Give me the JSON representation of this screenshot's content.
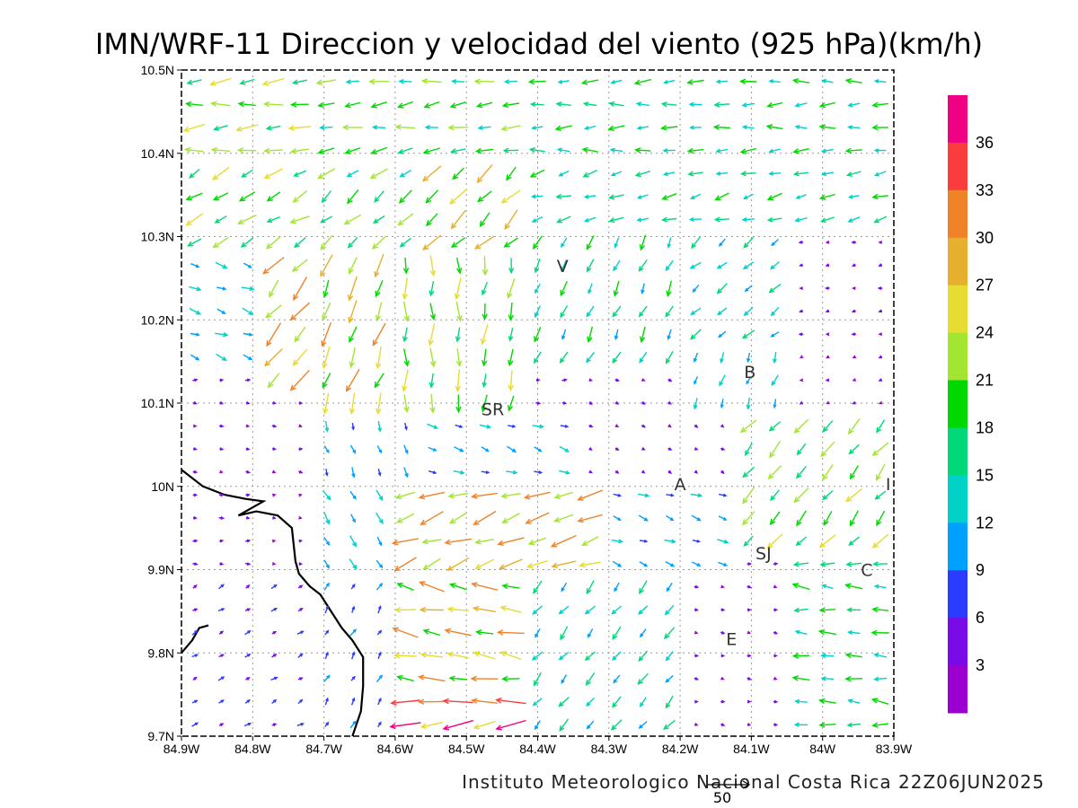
{
  "title": "IMN/WRF-11 Direccion y velocidad del viento (925 hPa)(km/h)",
  "footer": "Instituto Meteorologico Nacional Costa Rica 22Z06JUN2025",
  "reference_vector": {
    "label": "50",
    "speed": 50
  },
  "x_axis": {
    "range": [
      -84.9,
      -83.9
    ],
    "ticks": [
      {
        "value": -84.9,
        "label": "84.9W"
      },
      {
        "value": -84.8,
        "label": "84.8W"
      },
      {
        "value": -84.7,
        "label": "84.7W"
      },
      {
        "value": -84.6,
        "label": "84.6W"
      },
      {
        "value": -84.5,
        "label": "84.5W"
      },
      {
        "value": -84.4,
        "label": "84.4W"
      },
      {
        "value": -84.3,
        "label": "84.3W"
      },
      {
        "value": -84.2,
        "label": "84.2W"
      },
      {
        "value": -84.1,
        "label": "84.1W"
      },
      {
        "value": -84.0,
        "label": "84W"
      },
      {
        "value": -83.9,
        "label": "83.9W"
      }
    ]
  },
  "y_axis": {
    "range": [
      9.7,
      10.5
    ],
    "ticks": [
      {
        "value": 9.7,
        "label": "9.7N"
      },
      {
        "value": 9.8,
        "label": "9.8N"
      },
      {
        "value": 9.9,
        "label": "9.9N"
      },
      {
        "value": 10.0,
        "label": "10N"
      },
      {
        "value": 10.1,
        "label": "10.1N"
      },
      {
        "value": 10.2,
        "label": "10.2N"
      },
      {
        "value": 10.3,
        "label": "10.3N"
      },
      {
        "value": 10.4,
        "label": "10.4N"
      },
      {
        "value": 10.5,
        "label": "10.5N"
      }
    ]
  },
  "grid": true,
  "colorbar": {
    "bins": [
      {
        "max": 3,
        "color": "#9b00d0"
      },
      {
        "max": 6,
        "color": "#7a0be8"
      },
      {
        "max": 9,
        "color": "#2a3cff"
      },
      {
        "max": 12,
        "color": "#00a0ff"
      },
      {
        "max": 15,
        "color": "#00d2c8"
      },
      {
        "max": 18,
        "color": "#00d87a"
      },
      {
        "max": 21,
        "color": "#00d800"
      },
      {
        "max": 24,
        "color": "#a2e632"
      },
      {
        "max": 27,
        "color": "#e6dc32"
      },
      {
        "max": 30,
        "color": "#e6af2d"
      },
      {
        "max": 33,
        "color": "#f08228"
      },
      {
        "max": 36,
        "color": "#fa3c3c"
      },
      {
        "max": 40,
        "color": "#f00082"
      }
    ],
    "labels": [
      "3",
      "6",
      "9",
      "12",
      "15",
      "18",
      "21",
      "24",
      "27",
      "30",
      "33",
      "36"
    ]
  },
  "places": [
    {
      "label": "V",
      "lon": -84.365,
      "lat": 10.265
    },
    {
      "label": "B",
      "lon": -84.102,
      "lat": 10.138
    },
    {
      "label": "SR",
      "lon": -84.463,
      "lat": 10.093
    },
    {
      "label": "A",
      "lon": -84.2,
      "lat": 10.003
    },
    {
      "label": "I",
      "lon": -83.908,
      "lat": 10.003
    },
    {
      "label": "SJ",
      "lon": -84.083,
      "lat": 9.92
    },
    {
      "label": "C",
      "lon": -83.938,
      "lat": 9.9
    },
    {
      "label": "E",
      "lon": -84.128,
      "lat": 9.817
    }
  ],
  "coastline": [
    [
      -84.9,
      10.02
    ],
    [
      -84.87,
      10.0
    ],
    [
      -84.84,
      9.99
    ],
    [
      -84.81,
      9.985
    ],
    [
      -84.785,
      9.982
    ],
    [
      -84.82,
      9.965
    ],
    [
      -84.795,
      9.97
    ],
    [
      -84.765,
      9.965
    ],
    [
      -84.745,
      9.95
    ],
    [
      -84.74,
      9.91
    ],
    [
      -84.735,
      9.895
    ],
    [
      -84.72,
      9.88
    ],
    [
      -84.705,
      9.87
    ],
    [
      -84.69,
      9.85
    ],
    [
      -84.675,
      9.83
    ],
    [
      -84.66,
      9.815
    ],
    [
      -84.645,
      9.795
    ],
    [
      -84.645,
      9.76
    ],
    [
      -84.648,
      9.73
    ],
    [
      -84.66,
      9.7
    ]
  ],
  "coastline2": [
    [
      -84.9,
      9.8
    ],
    [
      -84.885,
      9.815
    ],
    [
      -84.875,
      9.83
    ],
    [
      -84.862,
      9.833
    ]
  ],
  "wind_regions": [
    {
      "lon": [
        -84.9,
        -84.72
      ],
      "lat": [
        10.38,
        10.5
      ],
      "dir": 265,
      "speed": 24
    },
    {
      "lon": [
        -84.72,
        -84.4
      ],
      "lat": [
        10.38,
        10.5
      ],
      "dir": 262,
      "speed": 21
    },
    {
      "lon": [
        -84.4,
        -83.9
      ],
      "lat": [
        10.4,
        10.5
      ],
      "dir": 268,
      "speed": 18
    },
    {
      "lon": [
        -84.4,
        -83.9
      ],
      "lat": [
        10.3,
        10.4
      ],
      "dir": 255,
      "speed": 17
    },
    {
      "lon": [
        -84.9,
        -84.72
      ],
      "lat": [
        10.28,
        10.38
      ],
      "dir": 240,
      "speed": 22
    },
    {
      "lon": [
        -84.72,
        -84.55
      ],
      "lat": [
        10.28,
        10.38
      ],
      "dir": 230,
      "speed": 21
    },
    {
      "lon": [
        -84.55,
        -84.4
      ],
      "lat": [
        10.28,
        10.38
      ],
      "dir": 225,
      "speed": 26
    },
    {
      "lon": [
        -84.9,
        -84.8
      ],
      "lat": [
        10.14,
        10.28
      ],
      "dir": 110,
      "speed": 14
    },
    {
      "lon": [
        -84.8,
        -84.7
      ],
      "lat": [
        10.12,
        10.28
      ],
      "dir": 220,
      "speed": 30
    },
    {
      "lon": [
        -84.7,
        -84.6
      ],
      "lat": [
        10.1,
        10.28
      ],
      "dir": 200,
      "speed": 28
    },
    {
      "lon": [
        -84.6,
        -84.5
      ],
      "lat": [
        10.09,
        10.28
      ],
      "dir": 180,
      "speed": 24
    },
    {
      "lon": [
        -84.5,
        -84.4
      ],
      "lat": [
        10.1,
        10.28
      ],
      "dir": 190,
      "speed": 22
    },
    {
      "lon": [
        -84.4,
        -84.2
      ],
      "lat": [
        10.14,
        10.3
      ],
      "dir": 205,
      "speed": 17
    },
    {
      "lon": [
        -84.2,
        -84.05
      ],
      "lat": [
        10.18,
        10.3
      ],
      "dir": 230,
      "speed": 15
    },
    {
      "lon": [
        -84.05,
        -83.9
      ],
      "lat": [
        10.18,
        10.3
      ],
      "dir": 260,
      "speed": 4
    },
    {
      "lon": [
        -84.2,
        -84.05
      ],
      "lat": [
        10.08,
        10.18
      ],
      "dir": 200,
      "speed": 13
    },
    {
      "lon": [
        -84.05,
        -83.9
      ],
      "lat": [
        10.08,
        10.18
      ],
      "dir": 250,
      "speed": 3
    },
    {
      "lon": [
        -84.9,
        -84.7
      ],
      "lat": [
        10.0,
        10.12
      ],
      "dir": 100,
      "speed": 4
    },
    {
      "lon": [
        -84.7,
        -84.55
      ],
      "lat": [
        10.0,
        10.1
      ],
      "dir": 160,
      "speed": 11
    },
    {
      "lon": [
        -84.55,
        -84.35
      ],
      "lat": [
        10.0,
        10.09
      ],
      "dir": 110,
      "speed": 12
    },
    {
      "lon": [
        -84.35,
        -84.12
      ],
      "lat": [
        10.0,
        10.14
      ],
      "dir": 120,
      "speed": 4
    },
    {
      "lon": [
        -84.12,
        -83.9
      ],
      "lat": [
        9.92,
        10.08
      ],
      "dir": 220,
      "speed": 22
    },
    {
      "lon": [
        -84.8,
        -84.7
      ],
      "lat": [
        9.88,
        10.0
      ],
      "dir": 90,
      "speed": 3
    },
    {
      "lon": [
        -84.7,
        -84.6
      ],
      "lat": [
        9.88,
        10.0
      ],
      "dir": 150,
      "speed": 14
    },
    {
      "lon": [
        -84.6,
        -84.3
      ],
      "lat": [
        9.88,
        10.0
      ],
      "dir": 250,
      "speed": 30
    },
    {
      "lon": [
        -84.3,
        -84.12
      ],
      "lat": [
        9.88,
        10.0
      ],
      "dir": 110,
      "speed": 12
    },
    {
      "lon": [
        -84.9,
        -84.7
      ],
      "lat": [
        9.7,
        9.88
      ],
      "dir": 60,
      "speed": 7
    },
    {
      "lon": [
        -84.7,
        -84.6
      ],
      "lat": [
        9.7,
        9.88
      ],
      "dir": 30,
      "speed": 9
    },
    {
      "lon": [
        -84.6,
        -84.4
      ],
      "lat": [
        9.76,
        9.88
      ],
      "dir": 280,
      "speed": 29
    },
    {
      "lon": [
        -84.6,
        -84.4
      ],
      "lat": [
        9.7,
        9.76
      ],
      "dir": 265,
      "speed": 37
    },
    {
      "lon": [
        -84.4,
        -84.2
      ],
      "lat": [
        9.7,
        9.88
      ],
      "dir": 220,
      "speed": 16
    },
    {
      "lon": [
        -84.2,
        -84.05
      ],
      "lat": [
        9.7,
        9.88
      ],
      "dir": 100,
      "speed": 4
    },
    {
      "lon": [
        -84.05,
        -83.9
      ],
      "lat": [
        9.7,
        9.92
      ],
      "dir": 275,
      "speed": 19
    }
  ]
}
